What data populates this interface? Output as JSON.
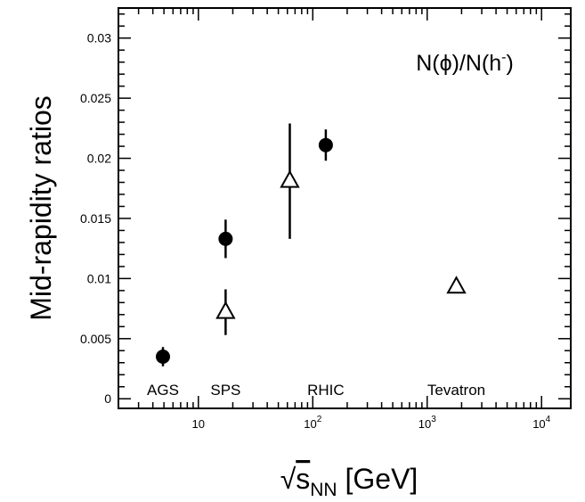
{
  "chart_data": {
    "type": "scatter",
    "title": "",
    "ylabel": "Mid-rapidity ratios",
    "xlabel": {
      "sqrt": "√",
      "s": "s",
      "sub": "NN",
      "unit": "[GeV]"
    },
    "xscale": "log",
    "xlim": [
      2.0,
      18000
    ],
    "ylim": [
      -0.0008,
      0.0325
    ],
    "y_ticks": [
      "0",
      "0.005",
      "0.01",
      "0.015",
      "0.02",
      "0.025",
      "0.03"
    ],
    "y_tick_values": [
      0,
      0.005,
      0.01,
      0.015,
      0.02,
      0.025,
      0.03
    ],
    "x_ticks": [
      {
        "value": 10,
        "base": "10",
        "exp": ""
      },
      {
        "value": 100,
        "base": "10",
        "exp": "2"
      },
      {
        "value": 1000,
        "base": "10",
        "exp": "3"
      },
      {
        "value": 10000,
        "base": "10",
        "exp": "4"
      }
    ],
    "annotation": {
      "text_a": "N(",
      "phi": "ϕ",
      "text_b": ")/N(h",
      "sup": "-",
      "text_c": ")"
    },
    "region_labels": [
      {
        "label": "AGS",
        "x": 4.9
      },
      {
        "label": "SPS",
        "x": 17.3
      },
      {
        "label": "RHIC",
        "x": 130
      },
      {
        "label": "Tevatron",
        "x": 1800
      }
    ],
    "series": [
      {
        "marker": "filled-circle",
        "points": [
          {
            "x": 4.9,
            "y": 0.0035,
            "err": 0.0008
          },
          {
            "x": 17.3,
            "y": 0.0133,
            "err": 0.0016
          },
          {
            "x": 130,
            "y": 0.0211,
            "err": 0.0013
          }
        ]
      },
      {
        "marker": "open-triangle",
        "points": [
          {
            "x": 17.3,
            "y": 0.0072,
            "err": 0.0019
          },
          {
            "x": 63,
            "y": 0.0181,
            "err": 0.0048
          },
          {
            "x": 1800,
            "y": 0.0093,
            "err": 0
          }
        ]
      }
    ],
    "grid": false,
    "legend": "none"
  }
}
